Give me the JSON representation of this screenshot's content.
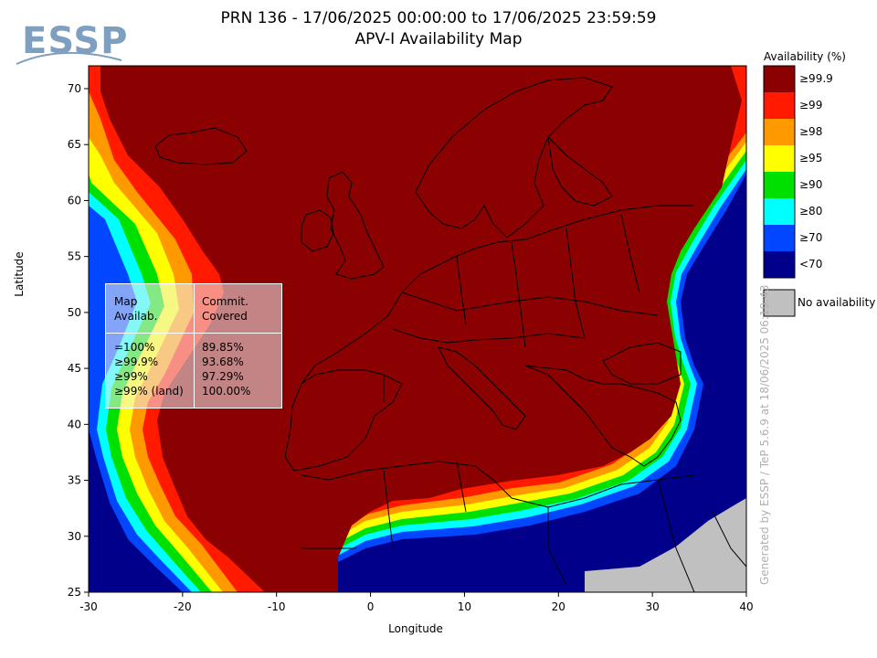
{
  "logo": {
    "text": "ESSP"
  },
  "title": {
    "line1": "PRN 136 - 17/06/2025 00:00:00 to 17/06/2025 23:59:59",
    "line2": "APV-I Availability Map"
  },
  "axes": {
    "xlabel": "Longitude",
    "ylabel": "Latitude",
    "x_ticks": [
      "-30",
      "-20",
      "-10",
      "0",
      "10",
      "20",
      "30",
      "40"
    ],
    "y_ticks": [
      "70",
      "65",
      "60",
      "55",
      "50",
      "45",
      "40",
      "35",
      "30",
      "25"
    ]
  },
  "legend": {
    "title": "Availability (%)",
    "items": [
      {
        "label": "≥99.9",
        "color": "#8b0000"
      },
      {
        "label": "≥99",
        "color": "#ff1a00"
      },
      {
        "label": "≥98",
        "color": "#ff9900"
      },
      {
        "label": "≥95",
        "color": "#ffff00"
      },
      {
        "label": "≥90",
        "color": "#00e000"
      },
      {
        "label": "≥80",
        "color": "#00ffff"
      },
      {
        "label": "≥70",
        "color": "#0047ff"
      },
      {
        "label": "<70",
        "color": "#00008b"
      }
    ],
    "no_availability": {
      "label": "No availability",
      "color": "#c0c0c0"
    }
  },
  "stats": {
    "header_left": [
      "Map",
      "Availab."
    ],
    "header_right": [
      "Commit.",
      "Covered"
    ],
    "rows": [
      {
        "avail": "=100%",
        "covered": "89.85%"
      },
      {
        "avail": "≥99.9%",
        "covered": "93.68%"
      },
      {
        "avail": "≥99%",
        "covered": "97.29%"
      },
      {
        "avail": "≥99% (land)",
        "covered": "100.00%"
      }
    ]
  },
  "watermark": "Generated by ESSP / TeP 5.6.9 at 18/06/2025 06:19:43"
}
